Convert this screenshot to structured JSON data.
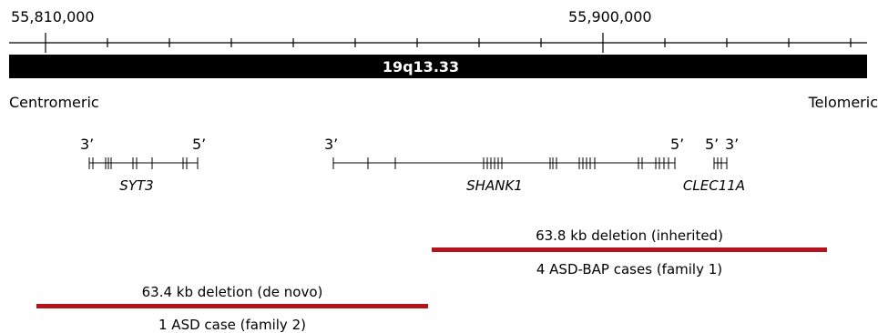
{
  "coordinates": {
    "left_label": "55,810,000",
    "right_label": "55,900,000"
  },
  "band": {
    "label": "19q13.33"
  },
  "orientation": {
    "left": "Centromeric",
    "right": "Telomeric"
  },
  "genes": [
    {
      "name": "SYT3",
      "left_end": "3’",
      "right_end": "5’"
    },
    {
      "name": "SHANK1",
      "left_end": "3’",
      "right_end": "5’"
    },
    {
      "name": "CLEC11A",
      "left_end": "5’",
      "right_end": "3’"
    }
  ],
  "deletions": [
    {
      "label": "63.8 kb deletion (inherited)",
      "cases": "4 ASD-BAP cases (family 1)",
      "color": "#b5121b"
    },
    {
      "label": "63.4 kb deletion (de novo)",
      "cases": "1 ASD case (family 2)",
      "color": "#b5121b"
    }
  ],
  "colors": {
    "band_fill": "#000000",
    "band_text": "#ffffff",
    "line": "#000000",
    "deletion": "#b5121b"
  }
}
